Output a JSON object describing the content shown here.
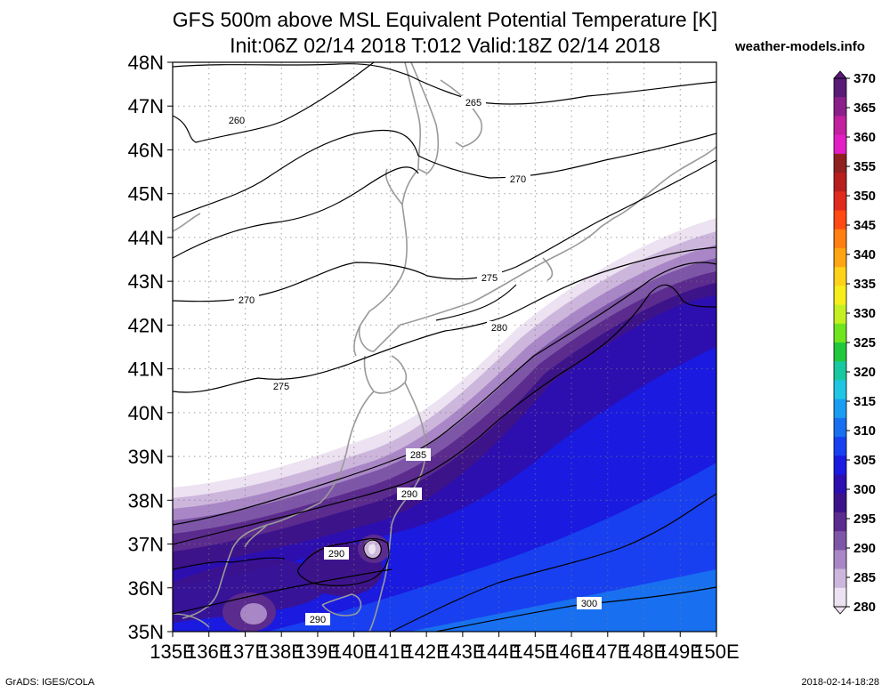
{
  "title_line1": "GFS 500m above MSL Equivalent Potential Temperature [K]",
  "title_line2": "Init:06Z 02/14 2018 T:012 Valid:18Z 02/14 2018",
  "site": "weather-models.info",
  "footer_left": "GrADS: IGES/COLA",
  "footer_right": "2018-02-14-18:28",
  "lat_labels": [
    "48N",
    "47N",
    "46N",
    "45N",
    "44N",
    "43N",
    "42N",
    "41N",
    "40N",
    "39N",
    "38N",
    "37N",
    "36N",
    "35N"
  ],
  "lon_labels": [
    "135E",
    "136E",
    "137E",
    "138E",
    "139E",
    "140E",
    "141E",
    "142E",
    "143E",
    "144E",
    "145E",
    "146E",
    "147E",
    "148E",
    "149E",
    "150E"
  ],
  "contour_labels": [
    "265",
    "270",
    "260",
    "270",
    "275",
    "275",
    "280",
    "285",
    "290",
    "290",
    "290",
    "300"
  ],
  "colorbar": {
    "labels": [
      "370",
      "365",
      "360",
      "355",
      "350",
      "345",
      "340",
      "335",
      "330",
      "325",
      "320",
      "315",
      "310",
      "305",
      "300",
      "295",
      "290",
      "285",
      "280"
    ],
    "colors": [
      "#5a1a78",
      "#8a1f8a",
      "#c2209e",
      "#e21fc4",
      "#8f2121",
      "#b81e1e",
      "#e02a1e",
      "#ff4a13",
      "#ff7f12",
      "#ffa413",
      "#ffd21a",
      "#f5ee1a",
      "#c4f022",
      "#6ee51e",
      "#22c83b",
      "#17c8a0",
      "#1ec6e4",
      "#1a9df0",
      "#1870f0",
      "#1840f0",
      "#1a1ae0",
      "#2d0fb0",
      "#3d138a",
      "#5b2b8e",
      "#7e56a8",
      "#a987c6",
      "#cdb6dc",
      "#ece2f1"
    ]
  }
}
